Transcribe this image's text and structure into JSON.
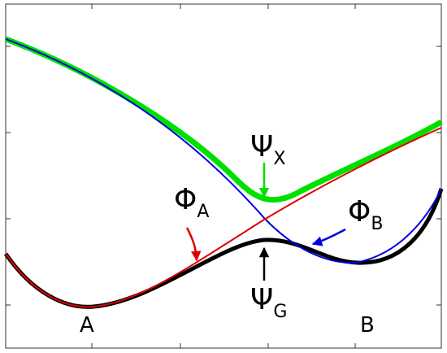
{
  "labels": [
    {
      "symbol": "Ψ",
      "subscript": "X"
    },
    {
      "symbol": "Φ",
      "subscript": "A"
    },
    {
      "symbol": "Φ",
      "subscript": "B"
    },
    {
      "symbol": "Ψ",
      "subscript": "G"
    }
  ],
  "wells": [
    "A",
    "B"
  ]
}
